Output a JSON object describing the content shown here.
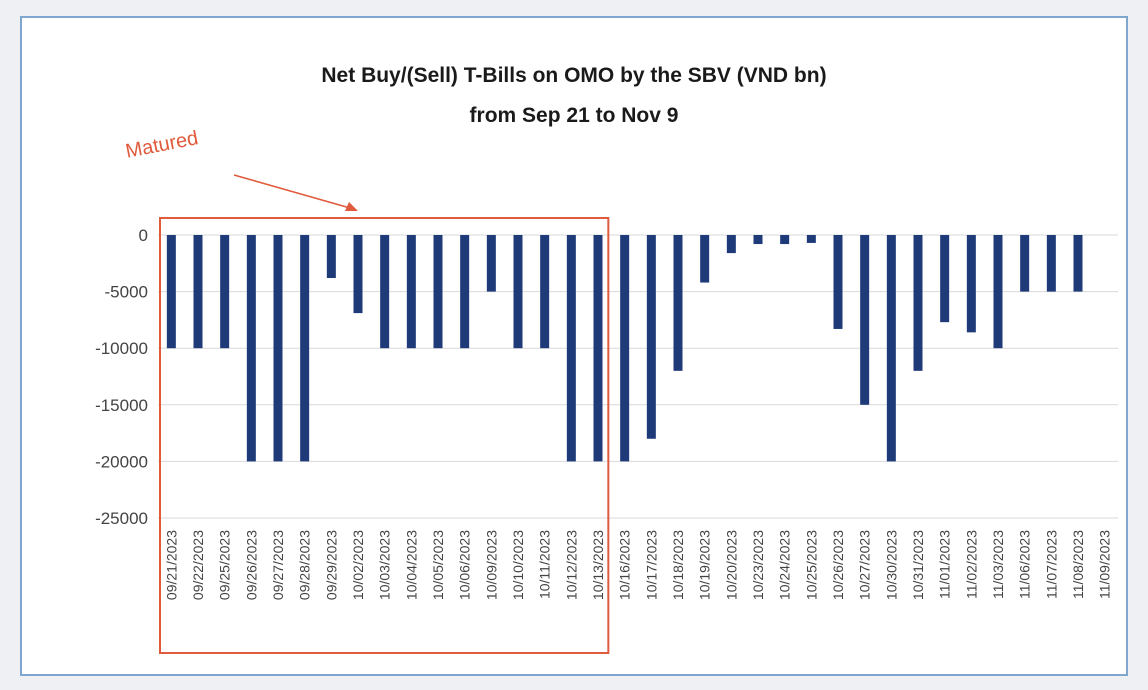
{
  "chart_data": {
    "type": "bar",
    "title_line1": "Net Buy/(Sell) T-Bills on OMO by the SBV (VND bn)",
    "title_line2": "from Sep 21 to Nov 9",
    "categories": [
      "09/21/2023",
      "09/22/2023",
      "09/25/2023",
      "09/26/2023",
      "09/27/2023",
      "09/28/2023",
      "09/29/2023",
      "10/02/2023",
      "10/03/2023",
      "10/04/2023",
      "10/05/2023",
      "10/06/2023",
      "10/09/2023",
      "10/10/2023",
      "10/11/2023",
      "10/12/2023",
      "10/13/2023",
      "10/16/2023",
      "10/17/2023",
      "10/18/2023",
      "10/19/2023",
      "10/20/2023",
      "10/23/2023",
      "10/24/2023",
      "10/25/2023",
      "10/26/2023",
      "10/27/2023",
      "10/30/2023",
      "10/31/2023",
      "11/01/2023",
      "11/02/2023",
      "11/03/2023",
      "11/06/2023",
      "11/07/2023",
      "11/08/2023",
      "11/09/2023"
    ],
    "values": [
      -10000,
      -10000,
      -10000,
      -20000,
      -20000,
      -20000,
      -3800,
      -6900,
      -10000,
      -10000,
      -10000,
      -10000,
      -5000,
      -10000,
      -10000,
      -20000,
      -20000,
      -20000,
      -18000,
      -12000,
      -4200,
      -1600,
      -800,
      -800,
      -700,
      -8300,
      -15000,
      -20000,
      -12000,
      -7700,
      -8600,
      -10000,
      -5000,
      -5000,
      -5000,
      0
    ],
    "ylim": [
      -25000,
      0
    ],
    "yticks": [
      0,
      -5000,
      -10000,
      -15000,
      -20000,
      -25000
    ],
    "ytick_labels": [
      "0",
      "-5000",
      "-10000",
      "-15000",
      "-20000",
      "-25000"
    ],
    "xlabel": "",
    "ylabel": "",
    "grid": true,
    "bar_color": "#1f3a78",
    "annotation": {
      "text": "Matured",
      "color": "#e05a3c",
      "first_category": "09/21/2023",
      "last_category": "10/13/2023"
    }
  }
}
